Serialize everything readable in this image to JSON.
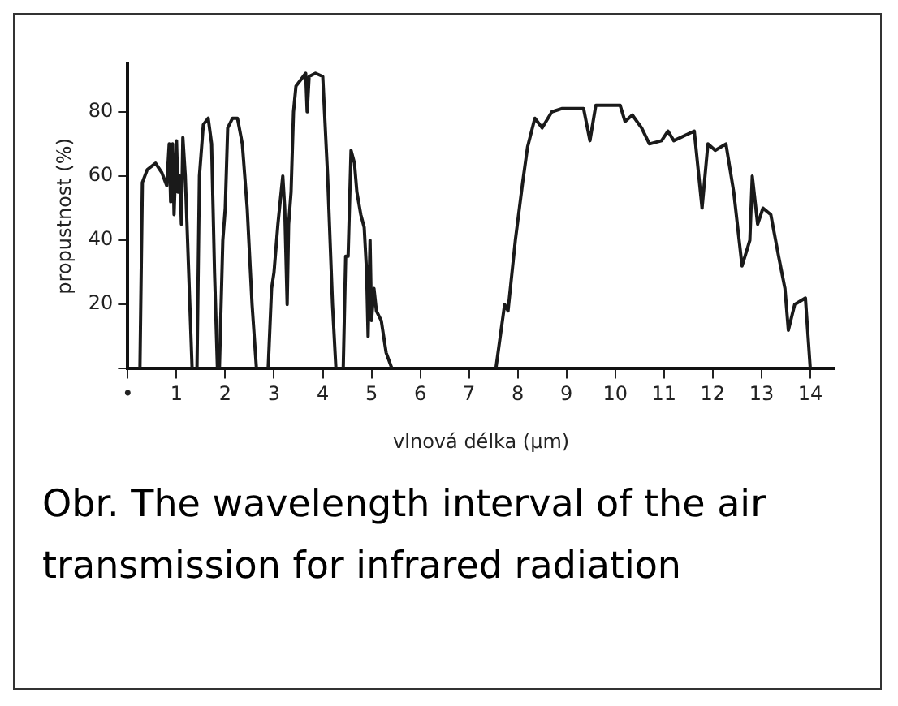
{
  "chart_data": {
    "type": "line",
    "xlabel": "vlnová délka (μm)",
    "ylabel": "propustnost (%)",
    "xlim": [
      0,
      14.5
    ],
    "ylim": [
      0,
      95
    ],
    "xticks": [
      {
        "value": 0,
        "label": "•"
      },
      1,
      2,
      3,
      4,
      5,
      6,
      7,
      8,
      9,
      10,
      11,
      12,
      13,
      14
    ],
    "yticks": [
      {
        "value": 0,
        "label": null
      },
      20,
      40,
      60,
      80
    ],
    "annotations": [
      "Obr. The wavelength interval of the air transmission for infrared radiation"
    ],
    "grid": false,
    "legend": false,
    "marker": "none",
    "line_style": "solid",
    "series": [
      {
        "color": "#1a1a1a",
        "x": [
          0.25,
          0.3,
          0.4,
          0.57,
          0.7,
          0.8,
          0.85,
          0.88,
          0.92,
          0.95,
          1.0,
          1.03,
          1.07,
          1.1,
          1.13,
          1.18,
          1.25,
          1.32,
          1.37,
          1.42,
          1.47,
          1.55,
          1.65,
          1.72,
          1.78,
          1.84,
          1.86,
          1.88,
          1.95,
          2.0,
          2.05,
          2.15,
          2.25,
          2.35,
          2.45,
          2.55,
          2.64,
          2.76,
          2.88,
          2.95,
          3.0,
          3.08,
          3.18,
          3.22,
          3.27,
          3.3,
          3.35,
          3.4,
          3.45,
          3.55,
          3.65,
          3.68,
          3.72,
          3.85,
          4.0,
          4.1,
          4.2,
          4.27,
          4.35,
          4.42,
          4.47,
          4.52,
          4.58,
          4.65,
          4.7,
          4.78,
          4.85,
          4.9,
          4.93,
          4.97,
          5.0,
          5.05,
          5.1,
          5.2,
          5.3,
          5.42,
          6.5,
          7.55,
          7.73,
          7.8,
          7.95,
          8.1,
          8.2,
          8.35,
          8.5,
          8.7,
          8.9,
          9.1,
          9.35,
          9.48,
          9.6,
          9.8,
          10.1,
          10.2,
          10.35,
          10.54,
          10.7,
          10.95,
          11.08,
          11.2,
          11.62,
          11.78,
          11.9,
          12.05,
          12.27,
          12.43,
          12.6,
          12.76,
          12.81,
          12.92,
          13.03,
          13.19,
          13.35,
          13.48,
          13.55,
          13.68,
          13.9,
          14.0
        ],
        "values": [
          0,
          58,
          62,
          64,
          61,
          57,
          70,
          52,
          70,
          48,
          71,
          55,
          60,
          45,
          72,
          60,
          30,
          0,
          null,
          0,
          60,
          76,
          78,
          70,
          30,
          0,
          null,
          0,
          40,
          50,
          75,
          78,
          78,
          70,
          50,
          20,
          0,
          null,
          0,
          25,
          30,
          45,
          60,
          50,
          20,
          45,
          55,
          80,
          88,
          90,
          92,
          80,
          91,
          92,
          91,
          60,
          20,
          0,
          null,
          0,
          35,
          35,
          68,
          64,
          55,
          48,
          44,
          30,
          10,
          40,
          15,
          25,
          18,
          15,
          5,
          0,
          null,
          0,
          20,
          18,
          40,
          58,
          69,
          78,
          75,
          80,
          81,
          81,
          81,
          71,
          82,
          82,
          82,
          77,
          79,
          75,
          70,
          71,
          74,
          71,
          74,
          50,
          70,
          68,
          70,
          55,
          32,
          40,
          60,
          45,
          50,
          48,
          35,
          25,
          12,
          20,
          22,
          0
        ]
      }
    ]
  }
}
